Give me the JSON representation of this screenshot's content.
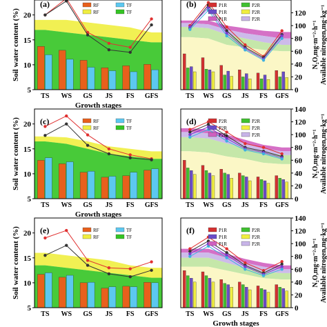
{
  "figure": {
    "background": "#ffffff"
  },
  "chart_data": [
    {
      "panel": "a",
      "type": "bar",
      "categories": [
        "TS",
        "WS",
        "GS",
        "JS",
        "FS",
        "GFS"
      ],
      "ylabel": "Soil water content (%)",
      "xlabel": "Growth stages",
      "ylim": [
        5,
        23
      ],
      "yticks": [
        5,
        10,
        15,
        20
      ],
      "legend": [
        "RF",
        "TF",
        "RF",
        "TF"
      ],
      "bars": [
        {
          "name": "TF",
          "color": "#e8601c",
          "values": [
            13.7,
            12.9,
            10.9,
            9.4,
            9.8,
            10.1
          ]
        },
        {
          "name": "RF",
          "color": "#5cc8f0",
          "values": [
            12.0,
            11.1,
            9.5,
            8.8,
            8.6,
            9.0
          ]
        }
      ],
      "bands": [
        {
          "color": "#f0ee40",
          "top": [
            19,
            19,
            18.5,
            18,
            17.5,
            16.5
          ],
          "bottom": [
            17,
            16.5,
            16,
            15.5,
            15,
            14.5
          ]
        },
        {
          "color": "#34c424",
          "top": [
            17,
            16.5,
            16,
            15.5,
            15,
            14.5
          ],
          "bottom": [
            5,
            5,
            5,
            5,
            5,
            5
          ]
        }
      ],
      "lines": [
        {
          "name": "RF",
          "color": "#e03030",
          "values": [
            20,
            23.3,
            16.5,
            14.3,
            13.5,
            19.2
          ]
        },
        {
          "name": "TF",
          "color": "#333333",
          "values": [
            20,
            22.8,
            16,
            13,
            12.5,
            18
          ]
        }
      ]
    },
    {
      "panel": "b",
      "type": "bar",
      "categories": [
        "TS",
        "WS",
        "GS",
        "JS",
        "FS",
        "GFS"
      ],
      "ylabel": "N₂O,mg·m⁻²·h⁻¹",
      "ylabel2": "Available nitrogen,mg·kg⁻¹",
      "ylim": [
        0,
        140
      ],
      "yticks": [
        0,
        20,
        40,
        60,
        80,
        100,
        120
      ],
      "legend": [
        "P1R",
        "P2R",
        "P1R",
        "P2R",
        "P1R",
        "P2R"
      ],
      "bars": [
        {
          "color": "#d43030",
          "values": [
            56,
            50,
            38,
            31,
            26,
            30
          ]
        },
        {
          "color": "#40c030",
          "values": [
            34,
            32,
            23,
            20,
            17,
            20
          ]
        },
        {
          "color": "#6a4cc8",
          "values": [
            36,
            31,
            29,
            25,
            23,
            28
          ]
        },
        {
          "color": "#f0ee40",
          "values": [
            28,
            28,
            21,
            17,
            16,
            19
          ]
        }
      ],
      "bands": [
        {
          "color": "#d060c0",
          "top": [
            108,
            108,
            100,
            96,
            92,
            90
          ],
          "bottom": [
            104,
            102,
            94,
            88,
            84,
            80
          ]
        },
        {
          "color": "#c8b4e8",
          "top": [
            104,
            102,
            94,
            88,
            84,
            80
          ],
          "bottom": [
            98,
            96,
            86,
            80,
            74,
            70
          ]
        },
        {
          "color": "#bfe4a0",
          "top": [
            98,
            96,
            86,
            80,
            74,
            70
          ],
          "bottom": [
            82,
            80,
            70,
            66,
            62,
            60
          ]
        },
        {
          "color": "#fbf6c0",
          "top": [
            82,
            80,
            70,
            66,
            62,
            60
          ],
          "bottom": [
            0,
            0,
            0,
            0,
            0,
            0
          ]
        }
      ],
      "lines": [
        {
          "color": "#e03030",
          "values": [
            100,
            136,
            98,
            70,
            52,
            92
          ]
        },
        {
          "color": "#333333",
          "values": [
            96,
            132,
            92,
            66,
            50,
            86
          ]
        },
        {
          "color": "#7a3ad0",
          "values": [
            98,
            128,
            88,
            64,
            48,
            84
          ]
        },
        {
          "color": "#40b0e0",
          "values": [
            94,
            124,
            84,
            62,
            46,
            80
          ]
        }
      ]
    },
    {
      "panel": "c",
      "type": "bar",
      "categories": [
        "TS",
        "WS",
        "GS",
        "JS",
        "FS",
        "GFS"
      ],
      "ylabel": "Soil water content (%)",
      "xlabel": "Growth stages",
      "ylim": [
        5,
        23
      ],
      "yticks": [
        5,
        10,
        15,
        20
      ],
      "legend": [
        "RF",
        "TF",
        "RF",
        "TF"
      ],
      "bars": [
        {
          "name": "TF",
          "color": "#e8601c",
          "values": [
            12.7,
            12.0,
            10.3,
            9.3,
            9.6,
            10.7
          ]
        },
        {
          "name": "RF",
          "color": "#5cc8f0",
          "values": [
            13.2,
            12.4,
            10.5,
            9.5,
            10.3,
            11.0
          ]
        }
      ],
      "bands": [
        {
          "color": "#f0ee40",
          "top": [
            17.5,
            17.3,
            16.5,
            15.5,
            15,
            14.5
          ],
          "bottom": [
            16.5,
            16,
            15,
            14,
            13.5,
            13
          ]
        },
        {
          "color": "#34c424",
          "top": [
            16.5,
            16,
            15,
            14,
            13.5,
            13
          ],
          "bottom": [
            5,
            5,
            5,
            5,
            5,
            5
          ]
        }
      ],
      "lines": [
        {
          "name": "RF",
          "color": "#e03030",
          "values": [
            19.5,
            21.6,
            17.8,
            15,
            13.8,
            13
          ]
        },
        {
          "name": "TF",
          "color": "#333333",
          "values": [
            17.7,
            20,
            15.7,
            14,
            13.2,
            12.8
          ]
        }
      ]
    },
    {
      "panel": "d",
      "type": "bar",
      "categories": [
        "TS",
        "WS",
        "GS",
        "JS",
        "FS",
        "GFS"
      ],
      "ylabel": "N₂O,mg·m⁻²·h⁻¹",
      "ylabel2": "Available nitrogen,mg·kg⁻¹",
      "ylim": [
        0,
        140
      ],
      "yticks": [
        0,
        20,
        40,
        60,
        80,
        100,
        120,
        140
      ],
      "legend": [
        "P2R",
        "P2R",
        "P2R",
        "P2R",
        "P2R",
        "P2R"
      ],
      "bars": [
        {
          "color": "#d43030",
          "values": [
            60,
            52,
            46,
            40,
            34,
            36
          ]
        },
        {
          "color": "#40c030",
          "values": [
            48,
            44,
            40,
            36,
            30,
            32
          ]
        },
        {
          "color": "#6a4cc8",
          "values": [
            44,
            40,
            38,
            34,
            28,
            30
          ]
        },
        {
          "color": "#f0ee40",
          "values": [
            38,
            36,
            32,
            28,
            24,
            26
          ]
        }
      ],
      "bands": [
        {
          "color": "#d060c0",
          "top": [
            110,
            108,
            100,
            92,
            84,
            80
          ],
          "bottom": [
            104,
            102,
            94,
            86,
            78,
            74
          ]
        },
        {
          "color": "#c8b4e8",
          "top": [
            104,
            102,
            94,
            86,
            78,
            74
          ],
          "bottom": [
            96,
            94,
            86,
            80,
            72,
            68
          ]
        },
        {
          "color": "#bfe4a0",
          "top": [
            96,
            94,
            86,
            80,
            72,
            68
          ],
          "bottom": [
            74,
            72,
            66,
            62,
            56,
            54
          ]
        },
        {
          "color": "#fbf6c0",
          "top": [
            74,
            72,
            66,
            62,
            56,
            54
          ],
          "bottom": [
            0,
            0,
            0,
            0,
            0,
            0
          ]
        }
      ],
      "lines": [
        {
          "color": "#e03030",
          "values": [
            108,
            120,
            104,
            86,
            80,
            70
          ]
        },
        {
          "color": "#333333",
          "values": [
            104,
            116,
            98,
            80,
            74,
            66
          ]
        },
        {
          "color": "#7a3ad0",
          "values": [
            100,
            112,
            94,
            78,
            72,
            64
          ]
        },
        {
          "color": "#40b0e0",
          "values": [
            96,
            108,
            90,
            76,
            70,
            62
          ]
        }
      ]
    },
    {
      "panel": "e",
      "type": "bar",
      "categories": [
        "TS",
        "WS",
        "GS",
        "JS",
        "FS",
        "GFS"
      ],
      "ylabel": "Soil water content (%)",
      "ylim": [
        5,
        23
      ],
      "yticks": [
        5,
        10,
        15,
        20
      ],
      "legend": [
        "RF",
        "TF",
        "RF",
        "TF"
      ],
      "bars": [
        {
          "name": "TF",
          "color": "#e8601c",
          "values": [
            11.7,
            11.1,
            10.0,
            8.9,
            9.3,
            10.1
          ]
        },
        {
          "name": "RF",
          "color": "#5cc8f0",
          "values": [
            12.0,
            11.5,
            10.1,
            9.2,
            9.2,
            10.0
          ]
        }
      ],
      "bands": [
        {
          "color": "#f0ee40",
          "top": [
            16,
            15.5,
            15,
            14.5,
            13.5,
            13
          ],
          "bottom": [
            13.5,
            13,
            12.5,
            12,
            11.5,
            11
          ]
        },
        {
          "color": "#34c424",
          "top": [
            13.5,
            13,
            12.5,
            12,
            11.5,
            11
          ],
          "bottom": [
            5,
            5,
            5,
            5,
            5,
            5
          ]
        }
      ],
      "lines": [
        {
          "name": "RF",
          "color": "#e03030",
          "values": [
            19,
            20.5,
            14.5,
            13,
            12.8,
            14.2
          ]
        },
        {
          "name": "TF",
          "color": "#333333",
          "values": [
            15.5,
            17.5,
            13.5,
            11.8,
            11.2,
            12.5
          ]
        }
      ]
    },
    {
      "panel": "f",
      "type": "bar",
      "categories": [
        "TS",
        "WS",
        "GS",
        "JS",
        "FS",
        "GFS"
      ],
      "xlabel": "Growth stages",
      "ylabel": "N₂O,mg·m⁻²·h⁻¹",
      "ylabel2": "Available nitrogen,mg·kg⁻¹",
      "ylim": [
        0,
        140
      ],
      "yticks": [
        0,
        20,
        40,
        60,
        80,
        100,
        120,
        140
      ],
      "legend": [
        "P1R",
        "P2R",
        "P1R",
        "P2R",
        "P1R",
        "P2R"
      ],
      "bars": [
        {
          "color": "#d43030",
          "values": [
            58,
            56,
            44,
            40,
            34,
            36
          ]
        },
        {
          "color": "#40c030",
          "values": [
            50,
            50,
            38,
            36,
            30,
            32
          ]
        },
        {
          "color": "#6a4cc8",
          "values": [
            46,
            46,
            36,
            32,
            28,
            30
          ]
        },
        {
          "color": "#f0ee40",
          "values": [
            40,
            40,
            32,
            28,
            24,
            26
          ]
        }
      ],
      "bands": [
        {
          "color": "#d060c0",
          "top": [
            92,
            92,
            84,
            76,
            70,
            66
          ],
          "bottom": [
            86,
            86,
            78,
            70,
            64,
            60
          ]
        },
        {
          "color": "#c8b4e8",
          "top": [
            86,
            86,
            78,
            70,
            64,
            60
          ],
          "bottom": [
            78,
            78,
            70,
            62,
            56,
            54
          ]
        },
        {
          "color": "#bfe4a0",
          "top": [
            78,
            78,
            70,
            62,
            56,
            54
          ],
          "bottom": [
            64,
            64,
            58,
            52,
            46,
            44
          ]
        },
        {
          "color": "#fbf6c0",
          "top": [
            64,
            64,
            58,
            52,
            46,
            44
          ],
          "bottom": [
            0,
            0,
            0,
            0,
            0,
            0
          ]
        }
      ],
      "lines": [
        {
          "color": "#e03030",
          "values": [
            92,
            110,
            92,
            70,
            58,
            72
          ]
        },
        {
          "color": "#333333",
          "values": [
            88,
            104,
            86,
            66,
            54,
            68
          ]
        },
        {
          "color": "#7a3ad0",
          "values": [
            84,
            100,
            82,
            64,
            52,
            64
          ]
        },
        {
          "color": "#40b0e0",
          "values": [
            80,
            96,
            78,
            60,
            50,
            60
          ]
        }
      ]
    }
  ]
}
